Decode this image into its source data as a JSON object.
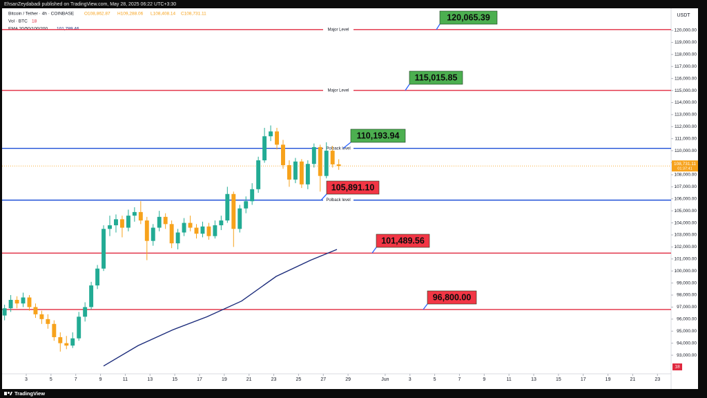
{
  "header": {
    "text": "EhsanZeydabadi published on TradingView.com, May 28, 2025 06:22 UTC+3:30"
  },
  "footer": {
    "brand": "TradingView"
  },
  "chart_data": {
    "type": "candlestick",
    "symbol": "Bitcoin / Tether · 4h · COINBASE",
    "ohlc_labels": [
      "O108,862.87",
      "H109,288.06",
      "L108,408.14",
      "C108,731.11"
    ],
    "volume_label": "Vol · BTC",
    "volume_value_label": "18",
    "currency": "USDT",
    "up_color": "#22ab94",
    "down_color": "#f7a21b",
    "x": [
      -1.75,
      -1.25,
      -0.75,
      -0.25,
      0.25,
      0.75,
      1.25,
      1.75,
      2.25,
      2.75,
      3.25,
      3.75,
      4.25,
      4.75,
      5.25,
      5.75,
      6.25,
      6.75,
      7.25,
      7.75,
      8.25,
      8.75,
      9.25,
      9.75,
      10.25,
      10.75,
      11.25,
      11.75,
      12.25,
      12.75,
      13.25,
      13.75,
      14.25,
      14.75,
      15.25,
      15.75,
      16.25,
      16.75,
      17.25,
      17.75,
      18.25,
      18.75,
      19.25,
      19.75,
      20.25,
      20.75,
      21.25,
      21.75,
      22.25,
      22.75,
      23.25,
      23.75,
      24.25,
      24.75,
      25.25
    ],
    "open": [
      96300,
      96900,
      97600,
      97300,
      97800,
      97000,
      96400,
      96000,
      95600,
      94500,
      94000,
      93800,
      94400,
      96200,
      97000,
      98800,
      100200,
      103500,
      103800,
      104300,
      103600,
      104600,
      104900,
      104200,
      102500,
      103600,
      104500,
      103900,
      102300,
      103200,
      104000,
      103600,
      103100,
      103700,
      102900,
      103800,
      104200,
      106400,
      103500,
      105200,
      105800,
      106800,
      109200,
      111200,
      111600,
      110500,
      108800,
      107600,
      109100,
      107200,
      108900,
      110300,
      107900,
      110000,
      108862.87
    ],
    "high": [
      97200,
      98000,
      97900,
      98200,
      98000,
      97300,
      96700,
      96400,
      95900,
      94900,
      94600,
      94900,
      96600,
      97400,
      99100,
      100500,
      103800,
      104600,
      104700,
      104600,
      105100,
      105300,
      105800,
      104500,
      103900,
      105000,
      104800,
      104200,
      103500,
      104400,
      104600,
      103900,
      104100,
      104000,
      104200,
      104600,
      107000,
      106600,
      105500,
      106200,
      107300,
      109500,
      111900,
      112100,
      111900,
      110900,
      109200,
      109400,
      109300,
      109200,
      110600,
      110500,
      110700,
      110400,
      109288.06
    ],
    "low": [
      95900,
      96600,
      96900,
      97000,
      96700,
      96100,
      95600,
      95200,
      94200,
      93300,
      93500,
      93600,
      94200,
      95800,
      96800,
      98500,
      100000,
      102900,
      103200,
      102800,
      103300,
      104100,
      103900,
      100900,
      102100,
      103300,
      103500,
      101900,
      101800,
      102900,
      103300,
      102700,
      102800,
      102600,
      102700,
      103400,
      104000,
      102000,
      103200,
      104800,
      105500,
      106500,
      109000,
      110800,
      110100,
      108500,
      107000,
      107300,
      106900,
      106800,
      108600,
      106600,
      107700,
      108600,
      108408.14
    ],
    "close": [
      96900,
      97600,
      97300,
      97800,
      97000,
      96400,
      96000,
      95600,
      94500,
      94000,
      93800,
      94400,
      96200,
      97000,
      98800,
      100200,
      103500,
      103800,
      104300,
      103600,
      104600,
      104900,
      104200,
      102500,
      103600,
      104500,
      103900,
      102300,
      103200,
      104000,
      103600,
      103100,
      103700,
      102900,
      103800,
      104200,
      106400,
      103500,
      105200,
      105800,
      106800,
      109200,
      111200,
      111600,
      110500,
      108800,
      107600,
      109100,
      107200,
      108900,
      110300,
      107900,
      110000,
      108862.87,
      108731.11
    ],
    "ema": {
      "name": "EMA 20/50/100/200",
      "last_label": "101,789.46",
      "color": "#1a2a7a",
      "x": [
        6.25,
        9.04,
        11.82,
        14.61,
        17.4,
        20.19,
        22.98,
        25.1
      ],
      "values": [
        92100,
        93800,
        95100,
        96200,
        97500,
        99550,
        100900,
        101789.46
      ]
    },
    "levels": [
      {
        "value": 120065.39,
        "label": "120,065.39",
        "color": "#e0293f",
        "note": "Major Level",
        "box": "#4caf50"
      },
      {
        "value": 115015.85,
        "label": "115,015.85",
        "color": "#e0293f",
        "note": "Major Level",
        "box": "#4caf50"
      },
      {
        "value": 110193.94,
        "label": "110,193.94",
        "color": "#1e4fd6",
        "note": "Polback level",
        "box": "#4caf50"
      },
      {
        "value": 105891.1,
        "label": "105,891.10",
        "color": "#1e4fd6",
        "note": "Polback level",
        "box": "#f23645"
      },
      {
        "value": 101489.56,
        "label": "101,489.56",
        "color": "#e0293f",
        "box": "#f23645"
      },
      {
        "value": 96800.0,
        "label": "96,800.00",
        "color": "#e0293f",
        "box": "#f23645"
      }
    ],
    "last_price": {
      "value": 108731.11,
      "label": "108,731.11",
      "countdown": "01:37:41",
      "color": "#f7a21b"
    },
    "xlim": [
      -2.12,
      52.1
    ],
    "xticks": [
      {
        "value": 0,
        "label": "3"
      },
      {
        "value": 2,
        "label": "5"
      },
      {
        "value": 4,
        "label": "7"
      },
      {
        "value": 6,
        "label": "9"
      },
      {
        "value": 8,
        "label": "11"
      },
      {
        "value": 10,
        "label": "13"
      },
      {
        "value": 12,
        "label": "15"
      },
      {
        "value": 14,
        "label": "17"
      },
      {
        "value": 16,
        "label": "19"
      },
      {
        "value": 18,
        "label": "21"
      },
      {
        "value": 20,
        "label": "23"
      },
      {
        "value": 22,
        "label": "25"
      },
      {
        "value": 24,
        "label": "27"
      },
      {
        "value": 26,
        "label": "29"
      },
      {
        "value": 29,
        "label": "Jun"
      },
      {
        "value": 31,
        "label": "3"
      },
      {
        "value": 33,
        "label": "5"
      },
      {
        "value": 35,
        "label": "7"
      },
      {
        "value": 37,
        "label": "9"
      },
      {
        "value": 39,
        "label": "11"
      },
      {
        "value": 41,
        "label": "13"
      },
      {
        "value": 43,
        "label": "15"
      },
      {
        "value": 45,
        "label": "17"
      },
      {
        "value": 47,
        "label": "19"
      },
      {
        "value": 49,
        "label": "21"
      },
      {
        "value": 51,
        "label": "23"
      }
    ],
    "ylim": [
      91453,
      121838
    ],
    "yticks": [
      {
        "value": 93000,
        "label": "93,000.00"
      },
      {
        "value": 94000,
        "label": "94,000.00"
      },
      {
        "value": 95000,
        "label": "95,000.00"
      },
      {
        "value": 96000,
        "label": "96,000.00"
      },
      {
        "value": 97000,
        "label": "97,000.00"
      },
      {
        "value": 98000,
        "label": "98,000.00"
      },
      {
        "value": 99000,
        "label": "99,000.00"
      },
      {
        "value": 100000,
        "label": "100,000.00"
      },
      {
        "value": 101000,
        "label": "101,000.00"
      },
      {
        "value": 102000,
        "label": "102,000.00"
      },
      {
        "value": 103000,
        "label": "103,000.00"
      },
      {
        "value": 104000,
        "label": "104,000.00"
      },
      {
        "value": 105000,
        "label": "105,000.00"
      },
      {
        "value": 106000,
        "label": "106,000.00"
      },
      {
        "value": 107000,
        "label": "107,000.00"
      },
      {
        "value": 108000,
        "label": "108,000.00"
      },
      {
        "value": 109000,
        "label": "109,000.00"
      },
      {
        "value": 110000,
        "label": "110,000.00"
      },
      {
        "value": 111000,
        "label": "111,000.00"
      },
      {
        "value": 112000,
        "label": "112,000.00"
      },
      {
        "value": 113000,
        "label": "113,000.00"
      },
      {
        "value": 114000,
        "label": "114,000.00"
      },
      {
        "value": 115000,
        "label": "115,000.00"
      },
      {
        "value": 116000,
        "label": "116,000.00"
      },
      {
        "value": 117000,
        "label": "117,000.00"
      },
      {
        "value": 118000,
        "label": "118,000.00"
      },
      {
        "value": 119000,
        "label": "119,000.00"
      },
      {
        "value": 120000,
        "label": "120,000.00"
      }
    ]
  }
}
